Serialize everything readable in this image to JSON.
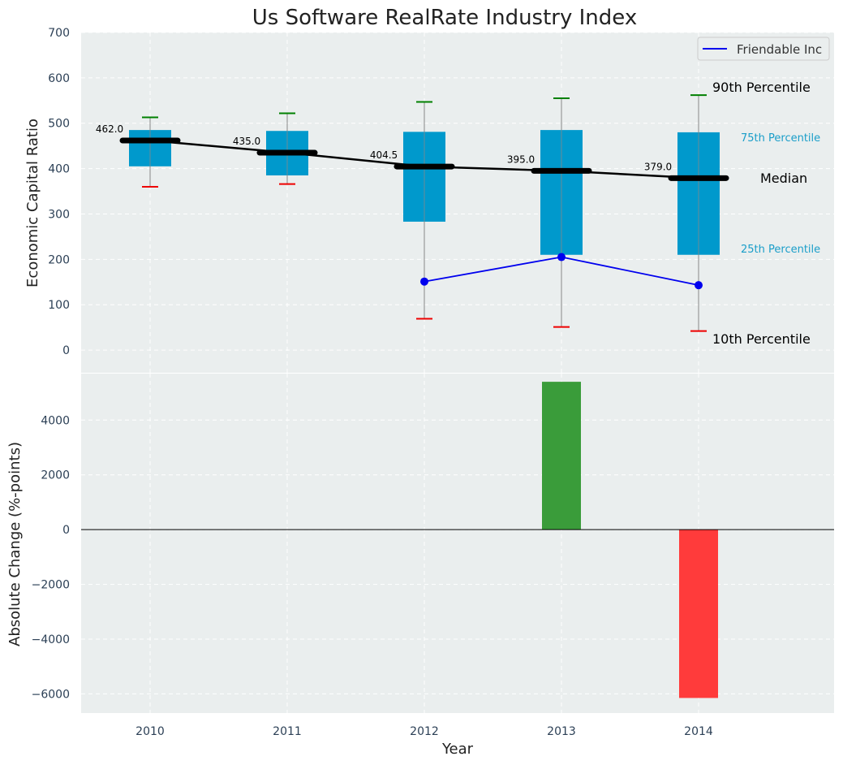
{
  "chart_data": [
    {
      "type": "box",
      "title": "Us Software RealRate Industry Index",
      "ylabel": "Economic Capital Ratio",
      "xlabel": "",
      "ylim": [
        -50,
        700
      ],
      "yticks": [
        0,
        100,
        200,
        300,
        400,
        500,
        600,
        700
      ],
      "categories": [
        "2010",
        "2011",
        "2012",
        "2013",
        "2014"
      ],
      "boxes": [
        {
          "year": "2010",
          "p10": 360,
          "p25": 405,
          "median": 462,
          "p75": 485,
          "p90": 513
        },
        {
          "year": "2011",
          "p10": 366,
          "p25": 385,
          "median": 435,
          "p75": 483,
          "p90": 522
        },
        {
          "year": "2012",
          "p10": 69,
          "p25": 283,
          "median": 404.5,
          "p75": 481,
          "p90": 547
        },
        {
          "year": "2013",
          "p10": 51,
          "p25": 210,
          "median": 395,
          "p75": 485,
          "p90": 555
        },
        {
          "year": "2014",
          "p10": 42,
          "p25": 210,
          "median": 379,
          "p75": 480,
          "p90": 562
        }
      ],
      "median_labels": [
        "462.0",
        "435.0",
        "404.5",
        "395.0",
        "379.0"
      ],
      "series": [
        {
          "name": "Friendable Inc",
          "color": "#0000ee",
          "x": [
            "2012",
            "2013",
            "2014"
          ],
          "values": [
            151,
            205,
            143
          ]
        }
      ],
      "annotations": {
        "p90": "90th Percentile",
        "p75": "75th Percentile",
        "median": "Median",
        "p25": "25th Percentile",
        "p10": "10th Percentile"
      },
      "legend_position": "top-right",
      "grid": true,
      "colors": {
        "box": "#0099cc",
        "median": "#000000",
        "p90_cap": "#008000",
        "p10_cap": "#ee0000",
        "whisker": "#888888",
        "background": "#eaeeee"
      }
    },
    {
      "type": "bar",
      "xlabel": "Year",
      "ylabel": "Absolute Change (%-points)",
      "ylim": [
        -6700,
        5700
      ],
      "yticks": [
        -6000,
        -4000,
        -2000,
        0,
        2000,
        4000
      ],
      "ytick_labels": [
        "−6000",
        "−4000",
        "−2000",
        "0",
        "2000",
        "4000"
      ],
      "categories": [
        "2010",
        "2011",
        "2012",
        "2013",
        "2014"
      ],
      "bars": [
        {
          "year": "2013",
          "value": 5400,
          "color": "#3a9c3a"
        },
        {
          "year": "2014",
          "value": -6150,
          "color": "#ff3b3b"
        }
      ],
      "grid": true
    }
  ]
}
